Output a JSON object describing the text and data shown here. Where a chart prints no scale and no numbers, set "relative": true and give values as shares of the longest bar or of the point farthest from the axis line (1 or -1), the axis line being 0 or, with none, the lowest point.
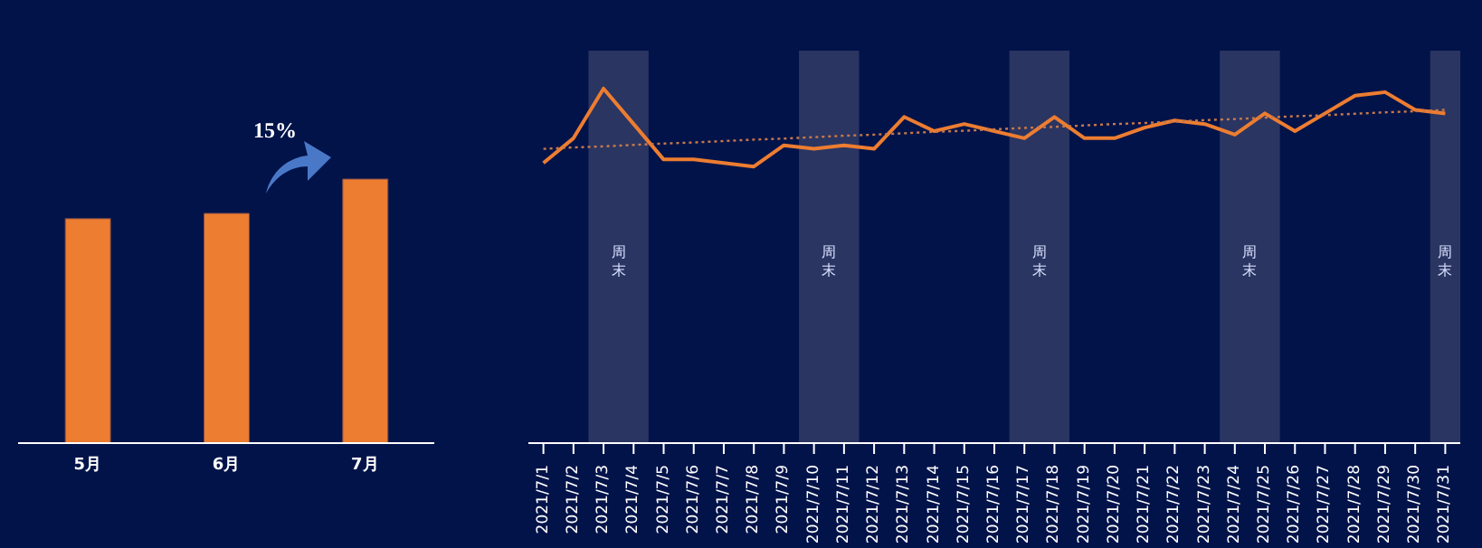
{
  "chart_data": [
    {
      "type": "bar",
      "categories": [
        "5月",
        "6月",
        "7月"
      ],
      "values": [
        0.85,
        0.87,
        1
      ],
      "color": "#ed7d31",
      "relative": true,
      "annotations": [
        "15%"
      ]
    },
    {
      "type": "line",
      "categories": [
        "2021/7/1",
        "2021/7/2",
        "2021/7/3",
        "2021/7/4",
        "2021/7/5",
        "2021/7/6",
        "2021/7/7",
        "2021/7/8",
        "2021/7/9",
        "2021/7/10",
        "2021/7/11",
        "2021/7/12",
        "2021/7/13",
        "2021/7/14",
        "2021/7/15",
        "2021/7/16",
        "2021/7/17",
        "2021/7/18",
        "2021/7/19",
        "2021/7/20",
        "2021/7/21",
        "2021/7/22",
        "2021/7/23",
        "2021/7/24",
        "2021/7/25",
        "2021/7/26",
        "2021/7/27",
        "2021/7/28",
        "2021/7/29",
        "2021/7/30",
        "2021/7/31"
      ],
      "relative": true,
      "marker": "none",
      "series": [
        {
          "color": "#ed7d31",
          "line_style": "solid",
          "values": [
            0.79,
            0.86,
            1,
            0.9,
            0.8,
            0.8,
            0.79,
            0.78,
            0.84,
            0.83,
            0.84,
            0.83,
            0.92,
            0.88,
            0.9,
            0.88,
            0.86,
            0.92,
            0.86,
            0.86,
            0.89,
            0.91,
            0.9,
            0.87,
            0.93,
            0.88,
            0.93,
            0.98,
            0.99,
            0.94,
            0.93
          ]
        },
        {
          "type": "line",
          "color": "#c8794a",
          "line_style": "dotted",
          "values": [
            0.83,
            0.834,
            0.837,
            0.841,
            0.845,
            0.848,
            0.852,
            0.856,
            0.859,
            0.863,
            0.867,
            0.87,
            0.874,
            0.878,
            0.881,
            0.885,
            0.889,
            0.892,
            0.896,
            0.9,
            0.903,
            0.907,
            0.911,
            0.914,
            0.918,
            0.922,
            0.925,
            0.929,
            0.933,
            0.936,
            0.94
          ]
        }
      ],
      "bands": [
        {
          "axis": "x",
          "from": "2021/7/3",
          "to": "2021/7/4",
          "label": "周末",
          "color": "#2a3562"
        },
        {
          "axis": "x",
          "from": "2021/7/10",
          "to": "2021/7/11",
          "label": "周末",
          "color": "#2a3562"
        },
        {
          "axis": "x",
          "from": "2021/7/17",
          "to": "2021/7/18",
          "label": "周末",
          "color": "#2a3562"
        },
        {
          "axis": "x",
          "from": "2021/7/24",
          "to": "2021/7/25",
          "label": "周末",
          "color": "#2a3562"
        },
        {
          "axis": "x",
          "from": "2021/7/31",
          "to": "2021/7/31",
          "label": "周末",
          "color": "#2a3562"
        }
      ]
    }
  ]
}
